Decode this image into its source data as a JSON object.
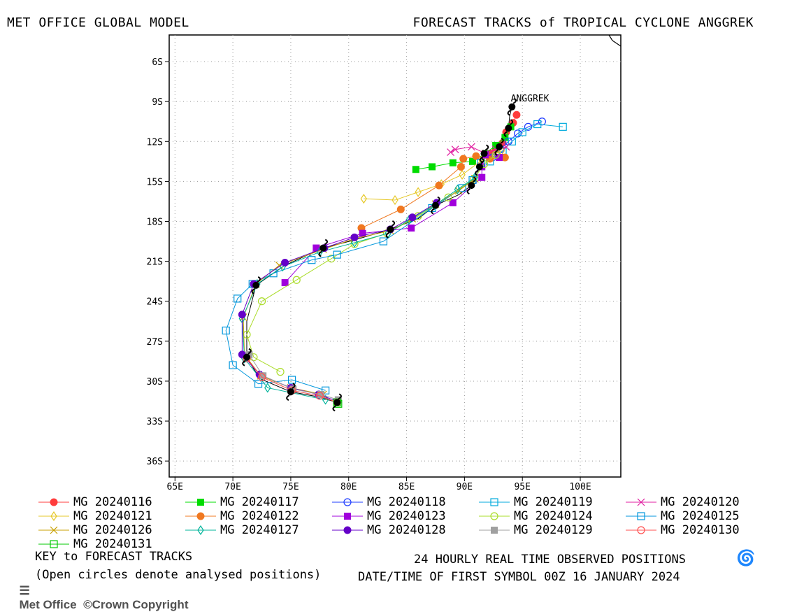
{
  "header": {
    "left": "MET OFFICE GLOBAL MODEL",
    "right": "FORECAST TRACKS of TROPICAL CYCLONE ANGGREK"
  },
  "map": {
    "lon_range": [
      64.5,
      103.5
    ],
    "lat_range": [
      -37.2,
      -4.0
    ],
    "lon_ticks": [
      "65E",
      "70E",
      "75E",
      "80E",
      "85E",
      "90E",
      "95E",
      "100E"
    ],
    "lat_ticks": [
      "6S",
      "9S",
      "12S",
      "15S",
      "18S",
      "21S",
      "24S",
      "27S",
      "30S",
      "33S",
      "36S"
    ],
    "storm_label": "ANGGREK",
    "grid": "dotted"
  },
  "chart_data": {
    "type": "scatter",
    "title": "FORECAST TRACKS of TROPICAL CYCLONE ANGGREK",
    "xlabel": "",
    "ylabel": "",
    "xlim": [
      64.5,
      103.5
    ],
    "ylim": [
      -37.2,
      -4.0
    ],
    "observed_track": [
      [
        94.1,
        -9.4
      ],
      [
        93.9,
        -10.1
      ],
      [
        93.8,
        -11.0
      ],
      [
        93.5,
        -11.8
      ],
      [
        93.0,
        -12.4
      ],
      [
        92.3,
        -12.8
      ],
      [
        91.7,
        -12.9
      ],
      [
        91.4,
        -13.3
      ],
      [
        91.3,
        -13.9
      ],
      [
        91.0,
        -14.7
      ],
      [
        90.6,
        -15.3
      ],
      [
        89.5,
        -16.0
      ],
      [
        87.5,
        -16.8
      ],
      [
        86.0,
        -17.8
      ],
      [
        83.6,
        -18.6
      ],
      [
        80.5,
        -19.4
      ],
      [
        77.8,
        -20.0
      ],
      [
        74.5,
        -21.3
      ],
      [
        72.0,
        -22.8
      ],
      [
        71.2,
        -25.5
      ],
      [
        71.2,
        -28.2
      ],
      [
        72.3,
        -29.8
      ],
      [
        75.0,
        -30.8
      ],
      [
        77.5,
        -31.2
      ],
      [
        79.0,
        -31.6
      ]
    ],
    "series": [
      {
        "name": "MG 20240116",
        "color": "#ff3c3c",
        "marker": "circle-filled",
        "points": [
          [
            94.5,
            -10.0
          ],
          [
            94.2,
            -10.6
          ],
          [
            93.6,
            -11.3
          ],
          [
            93.3,
            -12.1
          ],
          [
            92.7,
            -12.6
          ],
          [
            92.2,
            -12.9
          ]
        ]
      },
      {
        "name": "MG 20240117",
        "color": "#00dc00",
        "marker": "square-filled",
        "points": [
          [
            94.0,
            -10.9
          ],
          [
            93.5,
            -11.7
          ],
          [
            92.7,
            -12.3
          ],
          [
            91.8,
            -12.9
          ],
          [
            90.7,
            -13.5
          ],
          [
            89.0,
            -13.6
          ],
          [
            87.2,
            -13.9
          ],
          [
            85.8,
            -14.1
          ]
        ]
      },
      {
        "name": "MG 20240118",
        "color": "#1e3cff",
        "marker": "circle-open",
        "points": [
          [
            96.7,
            -10.5
          ],
          [
            95.5,
            -10.9
          ],
          [
            94.6,
            -11.4
          ],
          [
            93.8,
            -12.0
          ],
          [
            93.1,
            -12.6
          ],
          [
            92.4,
            -13.2
          ]
        ]
      },
      {
        "name": "MG 20240119",
        "color": "#00aadc",
        "marker": "square-open",
        "points": [
          [
            98.5,
            -10.9
          ],
          [
            96.3,
            -10.7
          ],
          [
            95.0,
            -11.3
          ],
          [
            94.1,
            -12.0
          ],
          [
            93.3,
            -12.7
          ],
          [
            92.2,
            -13.5
          ]
        ]
      },
      {
        "name": "MG 20240120",
        "color": "#e01ea0",
        "marker": "x",
        "points": [
          [
            93.6,
            -12.4
          ],
          [
            92.7,
            -12.6
          ],
          [
            91.8,
            -12.9
          ],
          [
            90.6,
            -12.4
          ],
          [
            89.2,
            -12.6
          ],
          [
            88.8,
            -12.8
          ]
        ]
      },
      {
        "name": "MG 20240121",
        "color": "#e6c828",
        "marker": "diamond-open",
        "points": [
          [
            93.2,
            -12.7
          ],
          [
            91.5,
            -13.4
          ],
          [
            89.8,
            -14.5
          ],
          [
            88.0,
            -15.2
          ],
          [
            86.0,
            -15.8
          ],
          [
            84.0,
            -16.4
          ],
          [
            81.3,
            -16.3
          ]
        ]
      },
      {
        "name": "MG 20240122",
        "color": "#f07820",
        "marker": "circle-filled",
        "points": [
          [
            93.5,
            -13.2
          ],
          [
            92.2,
            -13.3
          ],
          [
            91.0,
            -13.1
          ],
          [
            89.9,
            -13.3
          ],
          [
            89.7,
            -13.9
          ],
          [
            87.8,
            -15.3
          ],
          [
            84.5,
            -17.1
          ],
          [
            81.1,
            -18.5
          ]
        ]
      },
      {
        "name": "MG 20240123",
        "color": "#a000dc",
        "marker": "square-filled",
        "points": [
          [
            93.0,
            -13.2
          ],
          [
            91.8,
            -13.0
          ],
          [
            91.5,
            -13.9
          ],
          [
            91.5,
            -14.7
          ],
          [
            89.0,
            -16.6
          ],
          [
            85.4,
            -18.5
          ],
          [
            81.2,
            -18.9
          ],
          [
            77.2,
            -20.0
          ],
          [
            74.5,
            -22.6
          ]
        ]
      },
      {
        "name": "MG 20240124",
        "color": "#aadc28",
        "marker": "circle-open",
        "points": [
          [
            92.7,
            -13.0
          ],
          [
            91.7,
            -13.7
          ],
          [
            90.8,
            -14.8
          ],
          [
            88.6,
            -16.2
          ],
          [
            86.0,
            -17.6
          ],
          [
            83.3,
            -18.9
          ],
          [
            80.5,
            -19.7
          ],
          [
            78.5,
            -20.8
          ],
          [
            75.5,
            -22.4
          ],
          [
            72.5,
            -24.0
          ],
          [
            71.2,
            -26.5
          ],
          [
            71.8,
            -28.2
          ],
          [
            74.1,
            -29.3
          ]
        ]
      },
      {
        "name": "MG 20240125",
        "color": "#0096dc",
        "marker": "square-open",
        "points": [
          [
            91.4,
            -13.6
          ],
          [
            90.7,
            -14.9
          ],
          [
            89.8,
            -15.5
          ],
          [
            87.2,
            -17.0
          ],
          [
            83.0,
            -19.5
          ],
          [
            79.0,
            -20.5
          ],
          [
            76.8,
            -20.9
          ],
          [
            73.5,
            -21.9
          ],
          [
            71.7,
            -22.7
          ],
          [
            70.4,
            -23.8
          ],
          [
            69.4,
            -26.2
          ],
          [
            70.0,
            -28.8
          ],
          [
            72.2,
            -30.2
          ],
          [
            75.1,
            -29.9
          ],
          [
            78.0,
            -30.7
          ]
        ]
      },
      {
        "name": "MG 20240126",
        "color": "#c8a000",
        "marker": "x",
        "points": [
          [
            90.9,
            -14.8
          ],
          [
            89.5,
            -15.7
          ],
          [
            87.5,
            -16.7
          ],
          [
            85.5,
            -17.8
          ],
          [
            83.6,
            -18.7
          ],
          [
            80.5,
            -19.3
          ],
          [
            77.8,
            -20.1
          ],
          [
            74.0,
            -21.3
          ],
          [
            72.0,
            -22.7
          ],
          [
            70.9,
            -25.2
          ],
          [
            71.0,
            -28.0
          ],
          [
            72.4,
            -29.6
          ],
          [
            75.0,
            -30.5
          ],
          [
            77.8,
            -31.0
          ]
        ]
      },
      {
        "name": "MG 20240127",
        "color": "#00b49b",
        "marker": "diamond-open",
        "points": [
          [
            90.9,
            -14.7
          ],
          [
            89.4,
            -15.6
          ],
          [
            87.4,
            -16.8
          ],
          [
            85.2,
            -17.9
          ],
          [
            83.4,
            -18.9
          ],
          [
            80.5,
            -19.6
          ],
          [
            77.5,
            -20.3
          ],
          [
            74.3,
            -21.4
          ],
          [
            72.1,
            -22.7
          ],
          [
            70.8,
            -25.3
          ],
          [
            71.0,
            -28.3
          ],
          [
            73.0,
            -30.5
          ],
          [
            78.0,
            -31.4
          ]
        ]
      },
      {
        "name": "MG 20240128",
        "color": "#6400c8",
        "marker": "circle-filled",
        "points": [
          [
            87.6,
            -16.6
          ],
          [
            85.5,
            -17.7
          ],
          [
            83.6,
            -18.6
          ],
          [
            80.5,
            -19.2
          ],
          [
            77.9,
            -20.0
          ],
          [
            74.5,
            -21.1
          ],
          [
            71.8,
            -22.7
          ],
          [
            70.8,
            -25.0
          ],
          [
            70.8,
            -28.0
          ],
          [
            72.3,
            -29.5
          ],
          [
            75.0,
            -30.5
          ],
          [
            77.4,
            -31.0
          ],
          [
            79.0,
            -31.5
          ]
        ]
      },
      {
        "name": "MG 20240129",
        "color": "#a0a0a0",
        "marker": "square-filled",
        "points": [
          [
            71.4,
            -28.0
          ],
          [
            72.6,
            -29.6
          ],
          [
            75.2,
            -30.6
          ],
          [
            77.6,
            -31.0
          ],
          [
            79.1,
            -31.4
          ]
        ]
      },
      {
        "name": "MG 20240130",
        "color": "#ff5050",
        "marker": "circle-open",
        "points": [
          [
            71.2,
            -28.3
          ],
          [
            72.5,
            -29.7
          ],
          [
            75.1,
            -30.7
          ],
          [
            77.5,
            -31.1
          ],
          [
            79.0,
            -31.6
          ]
        ]
      },
      {
        "name": "MG 20240131",
        "color": "#00c800",
        "marker": "square-open",
        "points": [
          [
            79.0,
            -31.6
          ],
          [
            79.1,
            -31.7
          ]
        ]
      }
    ]
  },
  "footer": {
    "key_label": "KEY to FORECAST TRACKS",
    "open_note": "(Open circles denote analysed positions)",
    "copyright": "Met Office  ©Crown Copyright",
    "observed_label": "24 HOURLY REAL TIME OBSERVED POSITIONS",
    "datetime_label": "DATE/TIME OF FIRST SYMBOL 00Z 16 JANUARY 2024"
  }
}
